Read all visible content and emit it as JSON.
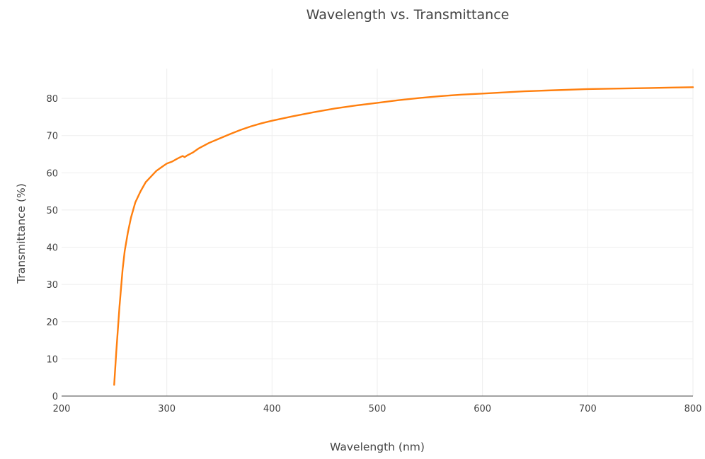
{
  "chart_data": {
    "type": "line",
    "title": "Wavelength vs. Transmittance",
    "xlabel": "Wavelength (nm)",
    "ylabel": "Transmittance (%)",
    "xlim": [
      200,
      800
    ],
    "ylim": [
      0,
      88
    ],
    "x_ticks": [
      200,
      300,
      400,
      500,
      600,
      700,
      800
    ],
    "y_ticks": [
      0,
      10,
      20,
      30,
      40,
      50,
      60,
      70,
      80
    ],
    "grid": true,
    "legend": "none",
    "line_color": "#ff7f0e",
    "series": [
      {
        "x": [
          250,
          252,
          255,
          258,
          260,
          263,
          266,
          270,
          275,
          280,
          285,
          290,
          295,
          300,
          305,
          310,
          315,
          317,
          319,
          325,
          330,
          340,
          350,
          360,
          370,
          380,
          390,
          400,
          420,
          440,
          460,
          480,
          500,
          520,
          540,
          560,
          580,
          600,
          620,
          640,
          660,
          680,
          700,
          720,
          740,
          760,
          780,
          800
        ],
        "y": [
          3,
          12,
          24,
          34,
          39,
          44,
          48,
          52,
          55,
          57.5,
          59,
          60.5,
          61.5,
          62.5,
          63,
          63.8,
          64.5,
          64.2,
          64.6,
          65.5,
          66.5,
          68,
          69.2,
          70.4,
          71.5,
          72.5,
          73.3,
          74,
          75.2,
          76.3,
          77.3,
          78.1,
          78.8,
          79.5,
          80.1,
          80.6,
          81,
          81.3,
          81.6,
          81.9,
          82.1,
          82.3,
          82.5,
          82.6,
          82.7,
          82.8,
          82.9,
          83
        ]
      }
    ]
  }
}
